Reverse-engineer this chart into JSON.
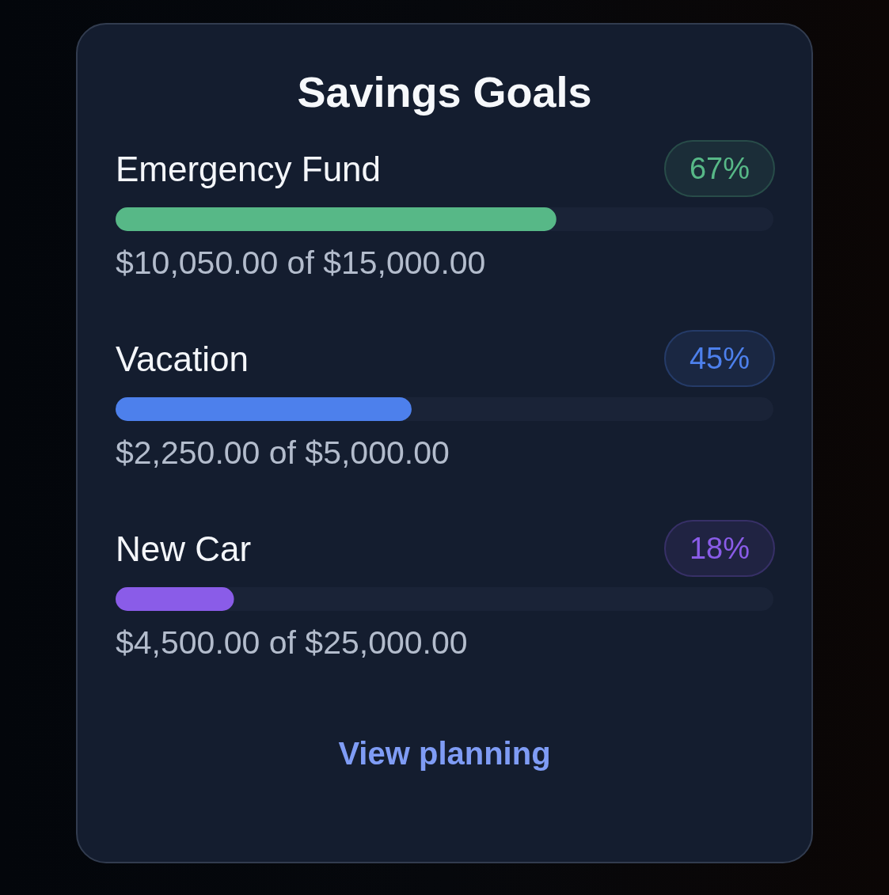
{
  "chart_data": {
    "type": "bar",
    "orientation": "horizontal",
    "title": "Savings Goals",
    "categories": [
      "Emergency Fund",
      "Vacation",
      "New Car"
    ],
    "values": [
      67,
      45,
      18
    ],
    "colors": [
      "#57b887",
      "#4d80ec",
      "#8a5ce8"
    ],
    "value_labels": [
      "67%",
      "45%",
      "18%"
    ],
    "xlim": [
      0,
      100
    ],
    "tick_labels": "y",
    "annotations": [
      "$10,050.00 of $15,000.00",
      "$2,250.00 of $5,000.00",
      "$4,500.00 of $25,000.00",
      "View planning"
    ]
  }
}
